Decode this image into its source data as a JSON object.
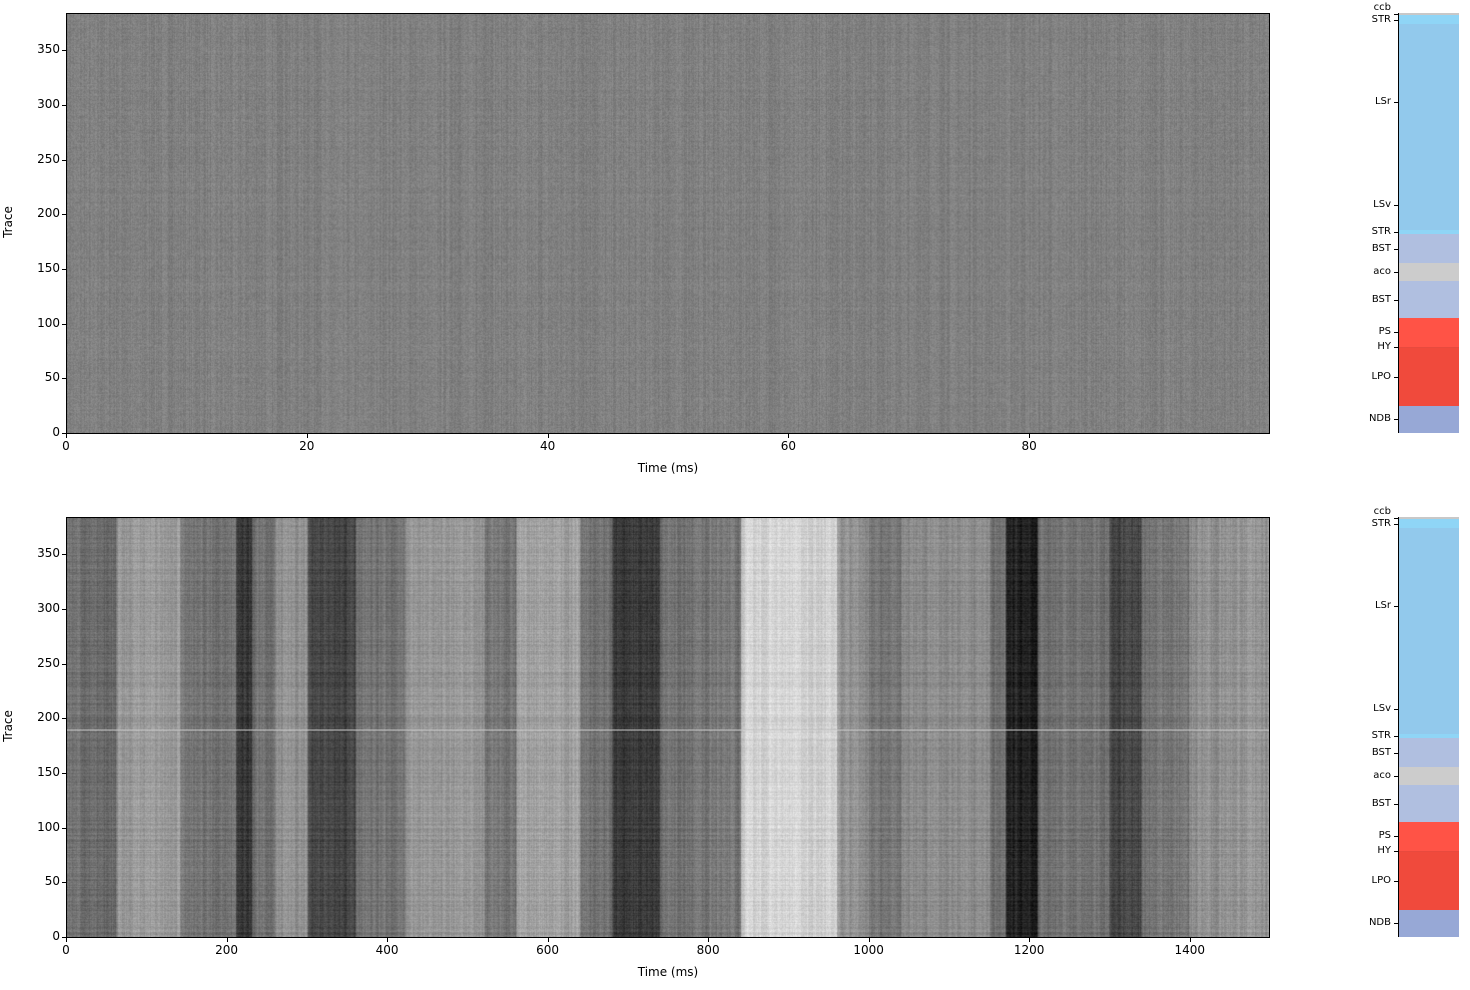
{
  "chart_data": [
    {
      "type": "heatmap",
      "xlabel": "Time (ms)",
      "ylabel": "Trace",
      "xlim": [
        0,
        100
      ],
      "ylim": [
        0,
        384
      ],
      "xticks": [
        0,
        20,
        40,
        60,
        80
      ],
      "yticks": [
        0,
        50,
        100,
        150,
        200,
        250,
        300,
        350
      ],
      "colormap": "gray"
    },
    {
      "type": "heatmap",
      "xlabel": "Time (ms)",
      "ylabel": "Trace",
      "xlim": [
        0,
        1500
      ],
      "ylim": [
        0,
        384
      ],
      "xticks": [
        0,
        200,
        400,
        600,
        800,
        1000,
        1200,
        1400
      ],
      "yticks": [
        0,
        50,
        100,
        150,
        200,
        250,
        300,
        350
      ],
      "colormap": "gray"
    }
  ],
  "regions": [
    {
      "name": "NDB",
      "from": 0,
      "to": 25,
      "color": "#97a8d6"
    },
    {
      "name": "LPO",
      "from": 25,
      "to": 78,
      "color": "#f04a3c"
    },
    {
      "name": "HY",
      "from": 78,
      "to": 79,
      "color": "#e84a3e"
    },
    {
      "name": "PS",
      "from": 79,
      "to": 105,
      "color": "#ff5346"
    },
    {
      "name": "BST",
      "from": 105,
      "to": 139,
      "color": "#b0bfe0"
    },
    {
      "name": "aco",
      "from": 139,
      "to": 155,
      "color": "#cccccc"
    },
    {
      "name": "BST",
      "from": 155,
      "to": 182,
      "color": "#b0bfe0"
    },
    {
      "name": "STR",
      "from": 182,
      "to": 186,
      "color": "#8fd5f6"
    },
    {
      "name": "LSv",
      "from": 186,
      "to": 231,
      "color": "#92c9ec"
    },
    {
      "name": "LSr",
      "from": 231,
      "to": 374,
      "color": "#92c9ec"
    },
    {
      "name": "STR",
      "from": 374,
      "to": 382,
      "color": "#8fd5f6"
    },
    {
      "name": "ccb",
      "from": 382,
      "to": 384,
      "color": "#c8c8c8"
    }
  ]
}
